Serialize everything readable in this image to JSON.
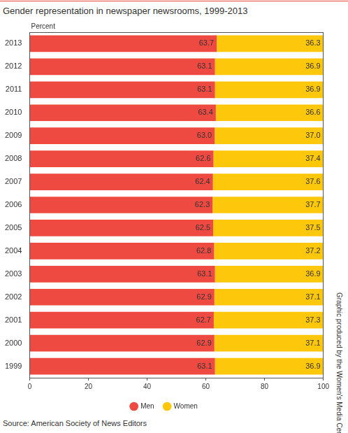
{
  "chart_data": {
    "type": "bar",
    "orientation": "horizontal",
    "stacked": true,
    "title": "Gender representation in newspaper newsrooms, 1999-2013",
    "xlabel": "Percent",
    "source": "Source: American Society of News Editors",
    "credit": "Graphic produced by the Women's Media Center",
    "categories": [
      "2013",
      "2012",
      "2011",
      "2010",
      "2009",
      "2008",
      "2007",
      "2006",
      "2005",
      "2004",
      "2003",
      "2002",
      "2001",
      "2000",
      "1999"
    ],
    "series": [
      {
        "name": "Men",
        "color": "#ef4a42",
        "values": [
          63.7,
          63.1,
          63.1,
          63.4,
          63.0,
          62.6,
          62.4,
          62.3,
          62.5,
          62.8,
          63.1,
          62.9,
          62.7,
          62.9,
          63.1
        ],
        "value_labels": [
          "63.7",
          "63.1",
          "63.1",
          "63.4",
          "63.0",
          "62.6",
          "62.4",
          "62.3",
          "62.5",
          "62.8",
          "63.1",
          "62.9",
          "62.7",
          "62.9",
          "63.1"
        ]
      },
      {
        "name": "Women",
        "color": "#fdc70c",
        "values": [
          36.3,
          36.9,
          36.9,
          36.6,
          37.0,
          37.4,
          37.6,
          37.7,
          37.5,
          37.2,
          36.9,
          37.1,
          37.3,
          37.1,
          36.9
        ],
        "value_labels": [
          "36.3",
          "36.9",
          "36.9",
          "36.6",
          "37.0",
          "37.4",
          "37.6",
          "37.7",
          "37.5",
          "37.2",
          "36.9",
          "37.1",
          "37.3",
          "37.1",
          "36.9"
        ]
      }
    ],
    "xlim": [
      0,
      100
    ],
    "xticks": [
      0,
      20,
      40,
      60,
      80,
      100
    ],
    "grid": false,
    "legend": "bottom",
    "data_labels": true
  }
}
